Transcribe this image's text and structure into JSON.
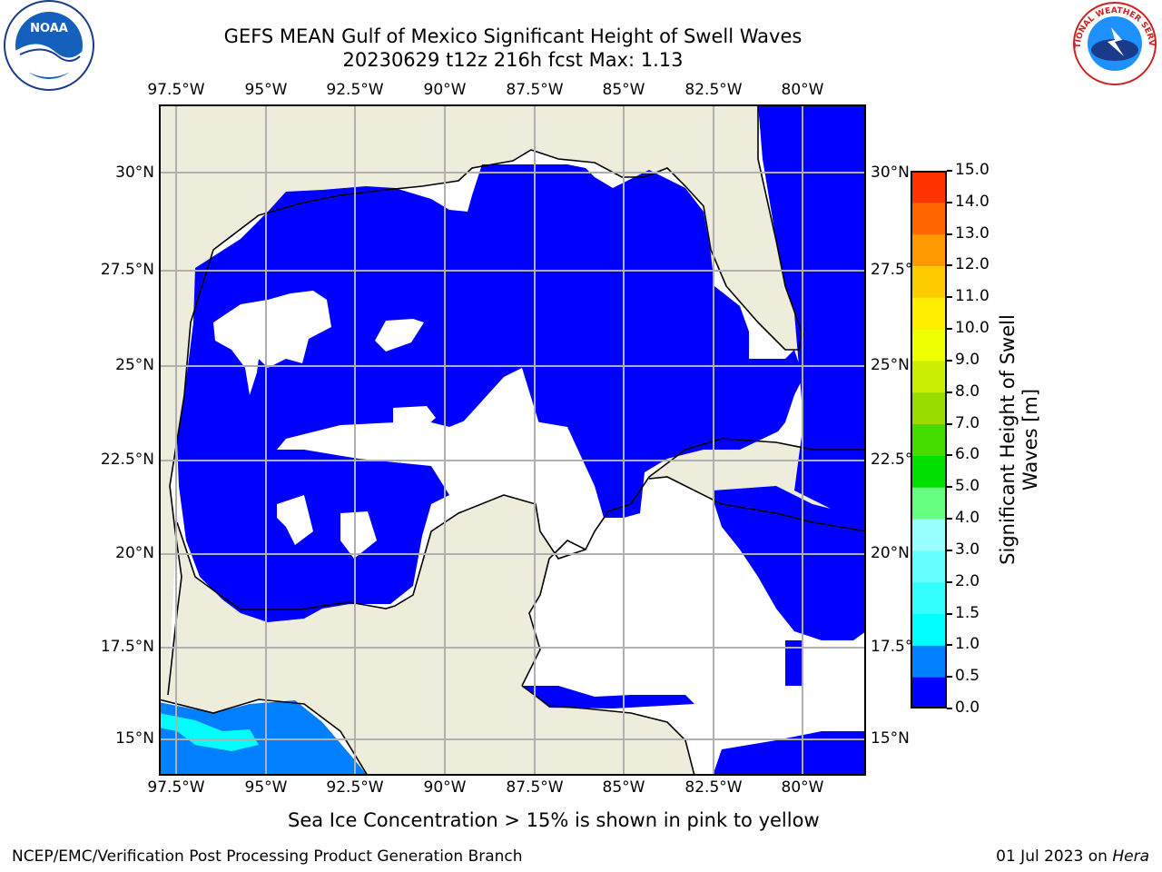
{
  "title": {
    "line1": "GEFS MEAN Gulf of Mexico Significant Height of Swell Waves",
    "line2": "20230629 t12z 216h fcst   Max: 1.13"
  },
  "logos": {
    "left": {
      "name": "noaa-logo",
      "text": "NOAA"
    },
    "right": {
      "name": "nws-logo",
      "text": "NATIONAL WEATHER SERVICE"
    }
  },
  "map": {
    "lon_ticks": [
      "97.5°W",
      "95°W",
      "92.5°W",
      "90°W",
      "87.5°W",
      "85°W",
      "82.5°W",
      "80°W"
    ],
    "lat_ticks": [
      "30°N",
      "27.5°N",
      "25°N",
      "22.5°N",
      "20°N",
      "17.5°N",
      "15°N"
    ],
    "colors": {
      "land": "#eeeddc",
      "no_data": "#ffffff",
      "grid": "#b0b0b0",
      "coast": "#000000"
    }
  },
  "colorbar": {
    "label": "Significant Height of Swell Waves [m]",
    "tick_labels": [
      "0.0",
      "0.5",
      "1.0",
      "1.5",
      "2.0",
      "3.0",
      "4.0",
      "5.0",
      "6.0",
      "7.0",
      "8.0",
      "9.0",
      "10.0",
      "11.0",
      "12.0",
      "13.0",
      "14.0",
      "15.0"
    ],
    "colors": [
      "#0000ff",
      "#0080ff",
      "#00ffff",
      "#33ffff",
      "#66ffff",
      "#99ffff",
      "#66ff80",
      "#00e000",
      "#44dd00",
      "#99dd00",
      "#ccee00",
      "#eeff00",
      "#ffee00",
      "#ffcc00",
      "#ff9900",
      "#ff6600",
      "#ff3300",
      "#ff0000"
    ]
  },
  "note": "Sea Ice Concentration > 15% is shown in pink to yellow",
  "footer": {
    "left": "NCEP/EMC/Verification Post Processing Product Generation Branch",
    "right_date": "01 Jul 2023 on ",
    "right_host": "Hera"
  }
}
